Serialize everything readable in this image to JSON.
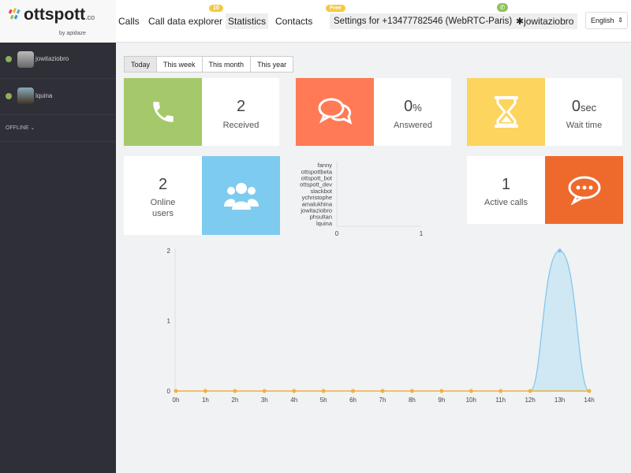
{
  "header": {
    "logo": "ottspott",
    "logo_suffix": ".co",
    "logo_by": "by apidaze",
    "nav": [
      {
        "label": "Calls"
      },
      {
        "label": "Call data explorer",
        "badge": "10"
      },
      {
        "label": "Statistics"
      },
      {
        "label": "Contacts"
      }
    ],
    "settings": {
      "label": "Settings for +13477782546 (WebRTC-Paris)",
      "badge": "Free"
    },
    "user": "jowitaziobro",
    "language": "English"
  },
  "sidebar": {
    "users": [
      {
        "name": "jowitaziobro",
        "status": "online"
      },
      {
        "name": "lquina",
        "status": "online"
      }
    ],
    "offline_label": "OFFLINE"
  },
  "tabs": [
    {
      "label": "Today",
      "active": true
    },
    {
      "label": "This week"
    },
    {
      "label": "This month"
    },
    {
      "label": "This year"
    }
  ],
  "cards": {
    "received": {
      "value": "2",
      "label": "Received",
      "color": "#a5c96a"
    },
    "answered": {
      "value": "0",
      "unit": "%",
      "label": "Answered",
      "color": "#ff7a55"
    },
    "wait": {
      "value": "0",
      "unit": "sec",
      "label": "Wait time",
      "color": "#fcd45e"
    },
    "online": {
      "value": "2",
      "label": "Online users",
      "color": "#7ecbf0"
    },
    "active": {
      "value": "1",
      "label": "Active calls",
      "color": "#ee6a2c"
    }
  },
  "chart_data": [
    {
      "type": "bar",
      "orientation": "horizontal",
      "categories": [
        "fanny",
        "ottspottbeta",
        "ottspott_bot",
        "ottspott_dev",
        "slackbot",
        "ychristophe",
        "amalukhina",
        "jowitaziobro",
        "phsultan",
        "lquina"
      ],
      "values": [
        0,
        0,
        0,
        0,
        0,
        0,
        0,
        0,
        0,
        0
      ],
      "xlim": [
        0,
        1
      ],
      "xticks": [
        "0",
        "1"
      ]
    },
    {
      "type": "area",
      "categories": [
        "0h",
        "1h",
        "2h",
        "3h",
        "4h",
        "5h",
        "6h",
        "7h",
        "8h",
        "9h",
        "10h",
        "11h",
        "12h",
        "13h",
        "14h"
      ],
      "values": [
        0,
        0,
        0,
        0,
        0,
        0,
        0,
        0,
        0,
        0,
        0,
        0,
        0,
        2,
        0
      ],
      "ylim": [
        0,
        2
      ],
      "yticks": [
        "0",
        "1",
        "2"
      ],
      "colors": {
        "line": "#f0b23c",
        "area": "#cfe8f3",
        "area_line": "#7ec5e8"
      }
    }
  ]
}
